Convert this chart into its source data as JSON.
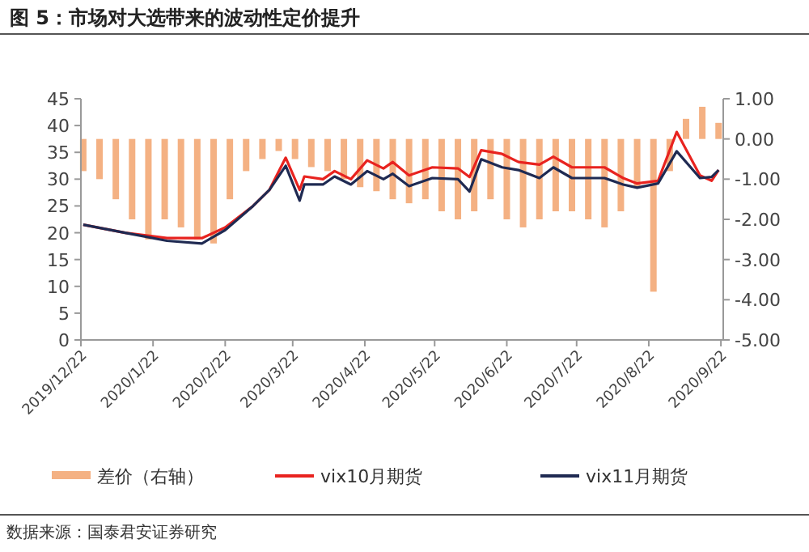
{
  "chart_data": {
    "type": "line",
    "title": "图 5：市场对大选带来的波动性定价提升",
    "annotations": [
      "数据来源：国泰君安证券研究"
    ],
    "xlim": [
      "2019-12-22",
      "2020-09-23"
    ],
    "xticks": [
      {
        "value": "2019-12-22",
        "label": "2019/12/22"
      },
      {
        "value": "2020-01-22",
        "label": "2020/1/22"
      },
      {
        "value": "2020-02-22",
        "label": "2020/2/22"
      },
      {
        "value": "2020-03-22",
        "label": "2020/3/22"
      },
      {
        "value": "2020-04-22",
        "label": "2020/4/22"
      },
      {
        "value": "2020-05-22",
        "label": "2020/5/22"
      },
      {
        "value": "2020-06-22",
        "label": "2020/6/22"
      },
      {
        "value": "2020-07-22",
        "label": "2020/7/22"
      },
      {
        "value": "2020-08-22",
        "label": "2020/8/22"
      },
      {
        "value": "2020-09-22",
        "label": "2020/9/22"
      }
    ],
    "ylim": [
      0,
      45
    ],
    "yticks": [
      0,
      5,
      10,
      15,
      20,
      25,
      30,
      35,
      40,
      45
    ],
    "y2lim": [
      -5,
      1
    ],
    "y2ticks": [
      {
        "value": -5,
        "label": "-5.00"
      },
      {
        "value": -4,
        "label": "-4.00"
      },
      {
        "value": -3,
        "label": "-3.00"
      },
      {
        "value": -2,
        "label": "-2.00"
      },
      {
        "value": -1,
        "label": "-1.00"
      },
      {
        "value": 0,
        "label": "0.00"
      },
      {
        "value": 1,
        "label": "1.00"
      }
    ],
    "legend": "bottom",
    "series": [
      {
        "name": "差价（右轴）",
        "type": "bar",
        "axis": "y2",
        "color": "#f4b183",
        "x": [
          "2019-12-23",
          "2019-12-30",
          "2020-01-06",
          "2020-01-13",
          "2020-01-20",
          "2020-01-27",
          "2020-02-03",
          "2020-02-10",
          "2020-02-17",
          "2020-02-24",
          "2020-03-02",
          "2020-03-09",
          "2020-03-16",
          "2020-03-23",
          "2020-03-30",
          "2020-04-06",
          "2020-04-13",
          "2020-04-20",
          "2020-04-27",
          "2020-05-04",
          "2020-05-11",
          "2020-05-18",
          "2020-05-25",
          "2020-06-01",
          "2020-06-08",
          "2020-06-15",
          "2020-06-22",
          "2020-06-29",
          "2020-07-06",
          "2020-07-13",
          "2020-07-20",
          "2020-07-27",
          "2020-08-03",
          "2020-08-10",
          "2020-08-17",
          "2020-08-24",
          "2020-08-31",
          "2020-09-07",
          "2020-09-14",
          "2020-09-21"
        ],
        "values": [
          -0.8,
          -1.0,
          -1.5,
          -2.0,
          -2.5,
          -2.0,
          -2.2,
          -2.5,
          -2.6,
          -1.5,
          -0.8,
          -0.5,
          -0.3,
          -0.5,
          -0.7,
          -0.8,
          -1.0,
          -1.2,
          -1.3,
          -1.5,
          -1.6,
          -1.5,
          -1.8,
          -2.0,
          -1.8,
          -1.5,
          -2.0,
          -2.2,
          -2.0,
          -1.8,
          -1.8,
          -2.0,
          -2.2,
          -1.8,
          -1.2,
          -3.8,
          -0.8,
          0.5,
          0.8,
          0.4
        ]
      },
      {
        "name": "vix10月期货",
        "color": "#e8231f",
        "x": [
          "2019-12-23",
          "2020-01-10",
          "2020-01-28",
          "2020-02-12",
          "2020-02-22",
          "2020-03-05",
          "2020-03-12",
          "2020-03-19",
          "2020-03-25",
          "2020-03-27",
          "2020-04-04",
          "2020-04-09",
          "2020-04-16",
          "2020-04-23",
          "2020-04-30",
          "2020-05-04",
          "2020-05-11",
          "2020-05-21",
          "2020-06-01",
          "2020-06-06",
          "2020-06-11",
          "2020-06-20",
          "2020-06-27",
          "2020-07-06",
          "2020-07-12",
          "2020-07-20",
          "2020-08-03",
          "2020-08-11",
          "2020-08-17",
          "2020-08-26",
          "2020-09-03",
          "2020-09-13",
          "2020-09-18",
          "2020-09-21"
        ],
        "values": [
          21.5,
          20,
          19,
          19,
          21,
          25,
          28,
          34,
          28,
          30.5,
          30,
          31.5,
          30,
          33.5,
          32,
          33.2,
          30.7,
          32.2,
          32,
          30.4,
          35.4,
          34.7,
          33.2,
          32.7,
          34.2,
          32.2,
          32.2,
          30.2,
          29.2,
          29.7,
          38.8,
          30.7,
          29.7,
          31.7
        ]
      },
      {
        "name": "vix11月期货",
        "color": "#1f2a52",
        "x": [
          "2019-12-23",
          "2020-01-10",
          "2020-01-28",
          "2020-02-12",
          "2020-02-22",
          "2020-03-05",
          "2020-03-12",
          "2020-03-19",
          "2020-03-25",
          "2020-03-27",
          "2020-04-04",
          "2020-04-09",
          "2020-04-16",
          "2020-04-23",
          "2020-04-30",
          "2020-05-04",
          "2020-05-11",
          "2020-05-21",
          "2020-06-01",
          "2020-06-06",
          "2020-06-11",
          "2020-06-20",
          "2020-06-27",
          "2020-07-06",
          "2020-07-12",
          "2020-07-20",
          "2020-08-03",
          "2020-08-11",
          "2020-08-17",
          "2020-08-26",
          "2020-09-03",
          "2020-09-13",
          "2020-09-18",
          "2020-09-21"
        ],
        "values": [
          21.5,
          20,
          18.5,
          18,
          20.5,
          25,
          28,
          32.5,
          26,
          29,
          29,
          30.5,
          29,
          31.5,
          30,
          31,
          28.7,
          30.2,
          30,
          27.7,
          33.7,
          32.2,
          31.7,
          30.2,
          32.2,
          30.2,
          30.2,
          29,
          28.4,
          29.2,
          35.2,
          30.2,
          30.4,
          31.7
        ]
      }
    ]
  }
}
